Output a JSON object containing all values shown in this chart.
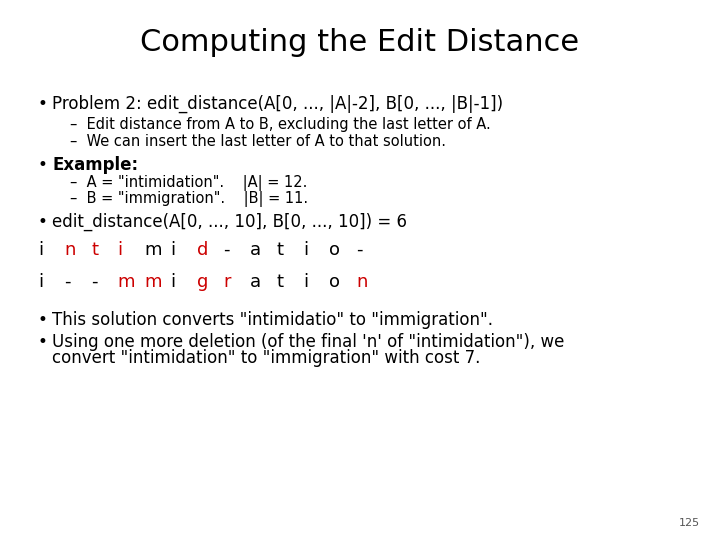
{
  "title": "Computing the Edit Distance",
  "title_fontsize": 22,
  "bg_color": "#ffffff",
  "text_color": "#000000",
  "red_color": "#cc0000",
  "bullet1": "Problem 2: edit_distance(A[0, ..., |A|-2], B[0, ..., |B|-1])",
  "sub1a": "Edit distance from A to B, excluding the last letter of A.",
  "sub1b": "We can insert the last letter of A to that solution.",
  "bullet2_bold": "Example:",
  "sub2a": "A = \"intimidation\".    |A| = 12.",
  "sub2b": "B = \"immigration\".    |B| = 11.",
  "bullet3": "edit_distance(A[0, ..., 10], B[0, ..., 10]) = 6",
  "row1_chars": [
    "i",
    "n",
    "t",
    "i",
    "m",
    "i",
    "d",
    "-",
    "a",
    "t",
    "i",
    "o",
    "-"
  ],
  "row1_colors": [
    "#000000",
    "#cc0000",
    "#cc0000",
    "#cc0000",
    "#000000",
    "#000000",
    "#cc0000",
    "#000000",
    "#000000",
    "#000000",
    "#000000",
    "#000000",
    "#000000"
  ],
  "row2_chars": [
    "i",
    "-",
    "-",
    "m",
    "m",
    "i",
    "g",
    "r",
    "a",
    "t",
    "i",
    "o",
    "n"
  ],
  "row2_colors": [
    "#000000",
    "#000000",
    "#000000",
    "#cc0000",
    "#cc0000",
    "#000000",
    "#cc0000",
    "#cc0000",
    "#000000",
    "#000000",
    "#000000",
    "#000000",
    "#cc0000"
  ],
  "bullet4": "This solution converts \"intimidatio\" to \"immigration\".",
  "bullet5a": "Using one more deletion (of the final 'n' of \"intimidation\"), we",
  "bullet5b": "convert \"intimidation\" to \"immigration\" with cost 7.",
  "page_num": "125",
  "mono_fontsize": 13,
  "body_fontsize": 12,
  "sub_fontsize": 10.5,
  "bullet_fontsize": 12
}
